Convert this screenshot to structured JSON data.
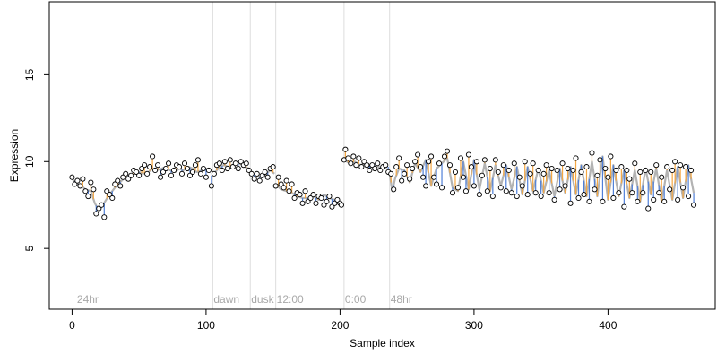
{
  "chart_data": {
    "type": "scatter",
    "xlabel": "Sample index",
    "ylabel": "Expression",
    "xlim": [
      -17,
      480
    ],
    "ylim": [
      1.5,
      19.2
    ],
    "xticks": [
      0,
      100,
      200,
      300,
      400
    ],
    "yticks": [
      5,
      10,
      15
    ],
    "grid": false,
    "legend": "none",
    "colors": {
      "fitted_line": "#b3b3b3",
      "above_fit": "#f5a742",
      "below_fit": "#4f7fd8",
      "point_fill": "#ffffff",
      "vertical_markers": "#dddddd",
      "annotation_text": "#a8a8a8"
    },
    "annotations": [
      {
        "label": "24hr",
        "x": 3
      },
      {
        "label": "dawn",
        "x": 105
      },
      {
        "label": "dusk",
        "x": 133
      },
      {
        "label": "12:00",
        "x": 152
      },
      {
        "label": "0:00",
        "x": 203
      },
      {
        "label": "48hr",
        "x": 237
      }
    ],
    "vlines": [
      105,
      133,
      152,
      203,
      237
    ],
    "segments": [
      {
        "x": [
          0,
          3,
          7,
          10,
          14,
          17,
          20,
          23,
          27,
          30,
          33,
          37,
          40,
          43,
          47,
          50,
          53,
          57,
          60,
          63,
          67,
          70,
          73,
          77,
          80,
          83,
          87,
          90,
          93,
          97,
          100,
          103
        ],
        "y": [
          9.0,
          8.8,
          8.6,
          8.4,
          8.3,
          7.6,
          7.2,
          7.5,
          8.0,
          8.3,
          8.6,
          8.9,
          9.1,
          9.2,
          9.3,
          9.4,
          9.3,
          9.4,
          9.6,
          9.5,
          9.6,
          9.7,
          9.5,
          9.4,
          9.6,
          9.5,
          9.7,
          9.6,
          9.4,
          9.5,
          9.6,
          9.5
        ]
      },
      {
        "x": [
          105,
          109,
          113,
          117,
          121,
          125,
          129,
          132
        ],
        "y": [
          9.2,
          9.6,
          9.8,
          9.7,
          9.8,
          9.9,
          9.7,
          9.6
        ]
      },
      {
        "x": [
          133,
          137,
          141,
          145,
          148,
          151
        ],
        "y": [
          9.4,
          9.2,
          9.1,
          9.3,
          9.5,
          9.3
        ]
      },
      {
        "x": [
          152,
          156,
          160,
          164,
          168,
          172,
          176,
          180,
          184,
          188,
          192,
          196,
          200,
          202
        ],
        "y": [
          8.7,
          8.4,
          8.3,
          8.2,
          8.0,
          7.9,
          7.9,
          8.0,
          7.8,
          8.1,
          7.9,
          7.8,
          7.7,
          7.6
        ]
      },
      {
        "x": [
          203,
          207,
          211,
          215,
          219,
          223,
          227,
          231,
          235
        ],
        "y": [
          10.1,
          9.9,
          10.0,
          9.8,
          9.9,
          9.7,
          9.8,
          9.6,
          9.7
        ]
      },
      {
        "x": [
          237,
          239,
          241,
          244,
          248,
          252,
          256,
          260,
          264,
          268,
          272,
          276,
          280,
          284,
          288,
          292,
          296,
          300,
          304,
          308,
          312,
          316,
          320,
          324,
          328,
          332,
          336,
          340,
          344,
          348,
          352,
          356,
          360,
          364,
          368,
          372,
          376,
          380,
          384,
          388,
          392,
          396,
          400,
          404,
          408,
          412,
          416,
          420,
          424,
          428,
          432,
          436,
          440,
          444,
          448,
          452,
          456,
          460,
          464
        ],
        "y": [
          9.3,
          8.3,
          9.0,
          9.6,
          9.5,
          8.8,
          9.9,
          9.4,
          10.1,
          8.6,
          9.6,
          9.9,
          10.2,
          8.5,
          8.3,
          10.0,
          8.4,
          10.1,
          8.4,
          9.9,
          8.3,
          9.8,
          8.6,
          9.8,
          8.4,
          9.7,
          8.1,
          9.7,
          8.3,
          9.6,
          8.2,
          9.5,
          8.0,
          9.6,
          8.2,
          9.7,
          8.1,
          9.8,
          8.0,
          10.0,
          8.0,
          10.3,
          7.8,
          9.8,
          8.0,
          9.5,
          7.9,
          9.5,
          7.7,
          9.6,
          8.1,
          9.6,
          7.7,
          9.5,
          7.8,
          9.7,
          7.9,
          9.8,
          8.2
        ]
      }
    ],
    "series": [
      {
        "x": [
          0,
          2,
          4,
          6,
          8,
          10,
          12,
          14,
          16,
          18,
          20,
          22,
          24,
          26,
          28,
          30,
          32,
          34,
          36,
          38,
          40,
          42,
          44,
          46,
          48,
          50,
          52,
          54,
          56,
          58,
          60,
          62,
          64,
          66,
          68,
          70,
          72,
          74,
          76,
          78,
          80,
          82,
          84,
          86,
          88,
          90,
          92,
          94,
          96,
          98,
          100,
          102
        ],
        "y": [
          9.1,
          8.7,
          8.9,
          8.6,
          9.0,
          8.3,
          8.0,
          8.8,
          8.4,
          7.0,
          7.3,
          7.5,
          6.8,
          8.3,
          8.1,
          7.9,
          8.7,
          8.9,
          8.6,
          9.1,
          9.3,
          9.0,
          9.2,
          9.5,
          9.4,
          9.2,
          9.6,
          9.8,
          9.3,
          9.7,
          10.3,
          9.5,
          9.8,
          9.1,
          9.4,
          9.6,
          9.9,
          9.2,
          9.5,
          9.8,
          9.7,
          9.3,
          9.9,
          9.6,
          9.2,
          9.4,
          9.8,
          10.1,
          9.3,
          9.6,
          9.1,
          9.5
        ]
      },
      {
        "x": [
          104,
          106,
          108,
          110,
          112,
          114,
          116,
          118,
          120,
          122,
          124,
          126,
          128,
          130,
          132
        ],
        "y": [
          8.6,
          9.3,
          9.8,
          9.9,
          9.5,
          10.0,
          9.6,
          10.1,
          9.7,
          9.9,
          9.6,
          10.0,
          9.8,
          9.9,
          9.5
        ]
      },
      {
        "x": [
          134,
          136,
          138,
          140,
          142,
          144,
          146,
          148,
          150
        ],
        "y": [
          9.3,
          9.0,
          9.3,
          8.9,
          9.2,
          9.4,
          9.1,
          9.6,
          9.7
        ]
      },
      {
        "x": [
          152,
          154,
          156,
          158,
          160,
          162,
          164,
          166,
          168,
          170,
          172,
          174,
          176,
          178,
          180,
          182,
          184,
          186,
          188,
          190,
          192,
          194,
          196,
          198,
          200,
          201
        ],
        "y": [
          8.6,
          9.1,
          8.7,
          8.5,
          8.9,
          8.3,
          8.7,
          7.9,
          8.2,
          8.1,
          7.6,
          8.3,
          7.7,
          7.9,
          8.1,
          7.6,
          8.0,
          7.9,
          7.5,
          7.7,
          8.0,
          7.4,
          7.6,
          7.8,
          7.6,
          7.5
        ]
      },
      {
        "x": [
          203,
          204,
          206,
          208,
          210,
          212,
          214,
          216,
          218,
          220,
          222,
          224,
          226,
          228,
          230,
          232,
          234,
          236
        ],
        "y": [
          10.1,
          10.7,
          10.2,
          9.9,
          10.3,
          9.8,
          10.2,
          9.7,
          10.0,
          9.8,
          9.5,
          9.8,
          9.6,
          9.9,
          9.5,
          9.7,
          9.8,
          9.4
        ]
      },
      {
        "x": [
          238,
          240,
          242,
          244,
          246,
          248,
          250,
          252,
          254,
          256,
          258,
          260,
          262,
          264,
          266,
          268,
          270,
          272,
          274,
          276,
          278,
          280,
          282,
          284,
          286,
          288,
          290,
          292,
          294,
          296,
          298,
          300,
          302,
          304,
          306,
          308,
          310,
          312,
          314,
          316,
          318,
          320,
          322,
          324,
          326,
          328,
          330,
          332,
          334,
          336,
          338,
          340,
          342,
          344,
          346,
          348,
          350,
          352,
          354,
          356,
          358,
          360,
          362,
          364,
          366,
          368,
          370,
          372,
          374,
          376,
          378,
          380,
          382,
          384,
          386,
          388,
          390,
          392,
          394,
          396,
          398,
          400,
          402,
          404,
          406,
          408,
          410,
          412,
          414,
          416,
          418,
          420,
          422,
          424,
          426,
          428,
          430,
          432,
          434,
          436,
          438,
          440,
          442,
          444,
          446,
          448,
          450,
          452,
          454,
          456,
          458,
          460,
          462,
          464
        ],
        "y": [
          9.3,
          8.4,
          9.7,
          10.2,
          8.9,
          9.3,
          9.8,
          9.0,
          9.6,
          10.0,
          10.4,
          9.7,
          9.1,
          8.6,
          10.0,
          10.3,
          9.1,
          8.7,
          9.9,
          8.5,
          10.3,
          10.6,
          9.8,
          8.2,
          9.4,
          8.5,
          10.2,
          9.1,
          8.3,
          10.4,
          9.7,
          8.6,
          10.0,
          8.1,
          9.2,
          10.1,
          8.3,
          9.6,
          8.0,
          10.1,
          9.4,
          8.5,
          9.8,
          8.3,
          9.5,
          8.2,
          9.9,
          8.0,
          9.1,
          8.6,
          10.0,
          8.1,
          9.3,
          9.9,
          8.2,
          9.5,
          8.0,
          9.3,
          9.8,
          8.2,
          9.6,
          7.8,
          9.5,
          8.4,
          9.9,
          8.6,
          9.6,
          7.6,
          9.5,
          10.2,
          7.9,
          9.4,
          8.1,
          9.7,
          7.7,
          10.5,
          8.4,
          9.2,
          10.1,
          7.7,
          9.6,
          9.1,
          10.3,
          7.9,
          9.5,
          8.2,
          9.7,
          7.4,
          9.5,
          9.0,
          8.2,
          9.9,
          7.7,
          9.4,
          8.2,
          9.5,
          7.3,
          9.4,
          7.8,
          9.8,
          8.2,
          9.1,
          7.7,
          9.7,
          8.4,
          9.5,
          10.0,
          7.8,
          9.8,
          8.5,
          9.7,
          8.0,
          9.5,
          7.5
        ]
      }
    ]
  }
}
